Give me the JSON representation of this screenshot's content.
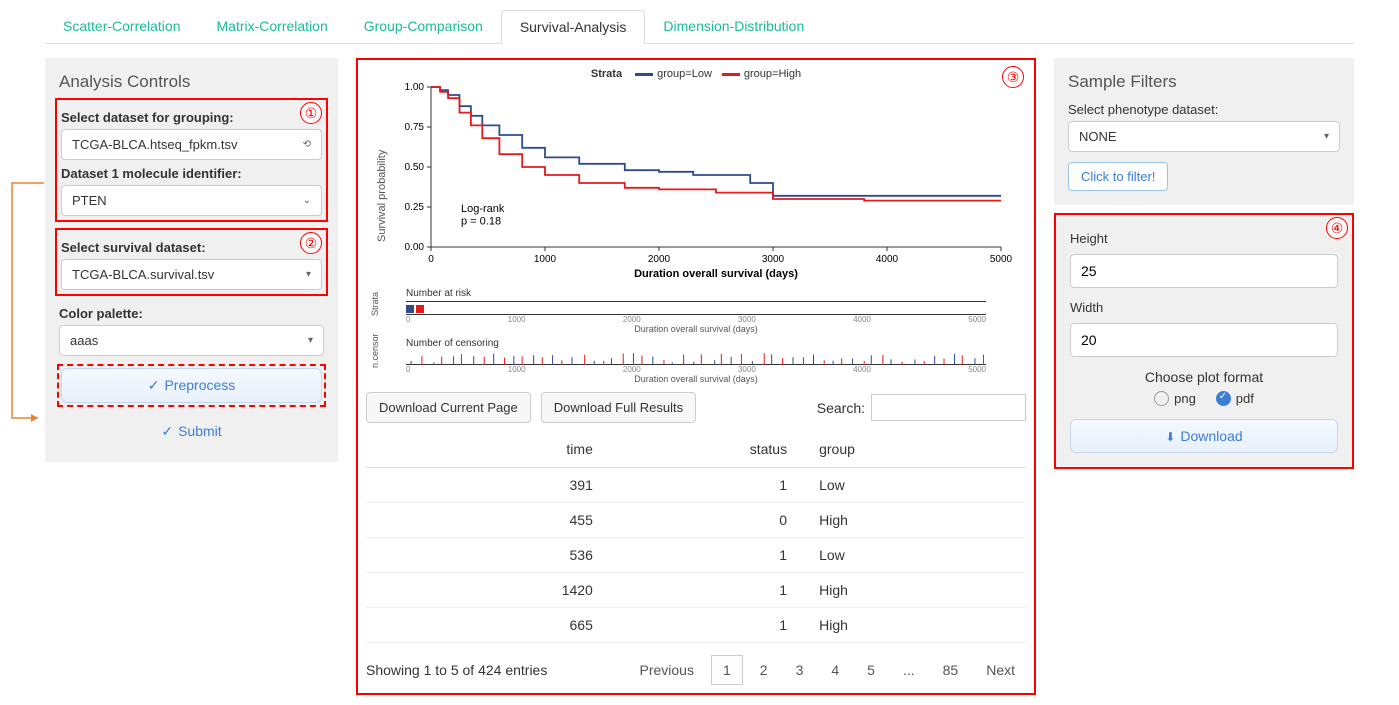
{
  "tabs": {
    "items": [
      "Scatter-Correlation",
      "Matrix-Correlation",
      "Group-Comparison",
      "Survival-Analysis",
      "Dimension-Distribution"
    ],
    "active_index": 3
  },
  "controls": {
    "title": "Analysis Controls",
    "dataset_label": "Select dataset for grouping:",
    "dataset_value": "TCGA-BLCA.htseq_fpkm.tsv",
    "molecule_label": "Dataset 1 molecule identifier:",
    "molecule_value": "PTEN",
    "survival_label": "Select survival dataset:",
    "survival_value": "TCGA-BLCA.survival.tsv",
    "palette_label": "Color palette:",
    "palette_value": "aaas",
    "preprocess_btn": "Preprocess",
    "submit_btn": "Submit"
  },
  "callouts": {
    "c1": "①",
    "c2": "②",
    "c3": "③",
    "c4": "④"
  },
  "chart": {
    "type": "kaplan-meier",
    "strata_label": "Strata",
    "legend": [
      {
        "label": "group=Low",
        "color": "#2e4b8f"
      },
      {
        "label": "group=High",
        "color": "#e41a1c"
      }
    ],
    "ylabel": "Survival probability",
    "xlabel": "Duration overall survival (days)",
    "xlim": [
      0,
      5000
    ],
    "ylim": [
      0,
      1.0
    ],
    "xtick_step": 1000,
    "ytick_step": 0.25,
    "yticks": [
      "0.00",
      "0.25",
      "0.50",
      "0.75",
      "1.00"
    ],
    "xticks": [
      "0",
      "1000",
      "2000",
      "3000",
      "4000",
      "5000"
    ],
    "annotation_lines": [
      "Log-rank",
      "p = 0.18"
    ],
    "background_color": "#ffffff",
    "axis_color": "#333333",
    "series": {
      "low": {
        "color": "#2e4b8f",
        "points": [
          [
            0,
            1.0
          ],
          [
            80,
            0.98
          ],
          [
            150,
            0.95
          ],
          [
            250,
            0.88
          ],
          [
            350,
            0.82
          ],
          [
            450,
            0.76
          ],
          [
            600,
            0.7
          ],
          [
            800,
            0.62
          ],
          [
            1000,
            0.56
          ],
          [
            1300,
            0.52
          ],
          [
            1700,
            0.48
          ],
          [
            2000,
            0.47
          ],
          [
            2300,
            0.45
          ],
          [
            2800,
            0.4
          ],
          [
            3000,
            0.32
          ],
          [
            3600,
            0.32
          ],
          [
            4400,
            0.32
          ],
          [
            5000,
            0.32
          ]
        ]
      },
      "high": {
        "color": "#e41a1c",
        "points": [
          [
            0,
            1.0
          ],
          [
            80,
            0.97
          ],
          [
            150,
            0.93
          ],
          [
            250,
            0.84
          ],
          [
            350,
            0.76
          ],
          [
            450,
            0.68
          ],
          [
            600,
            0.58
          ],
          [
            800,
            0.5
          ],
          [
            1000,
            0.45
          ],
          [
            1300,
            0.4
          ],
          [
            1700,
            0.37
          ],
          [
            2000,
            0.36
          ],
          [
            2500,
            0.34
          ],
          [
            3000,
            0.3
          ],
          [
            3800,
            0.29
          ],
          [
            4500,
            0.29
          ],
          [
            5000,
            0.29
          ]
        ]
      }
    },
    "risk_title": "Number at risk",
    "censor_title": "Number of censoring",
    "sub_xlabel": "Duration overall survival (days)",
    "strata_axis": "Strata",
    "censor_axis": "n.censor"
  },
  "table": {
    "download_page_btn": "Download Current Page",
    "download_full_btn": "Download Full Results",
    "search_label": "Search:",
    "columns": [
      "time",
      "status",
      "group"
    ],
    "rows": [
      {
        "time": "391",
        "status": "1",
        "group": "Low"
      },
      {
        "time": "455",
        "status": "0",
        "group": "High"
      },
      {
        "time": "536",
        "status": "1",
        "group": "Low"
      },
      {
        "time": "1420",
        "status": "1",
        "group": "High"
      },
      {
        "time": "665",
        "status": "1",
        "group": "High"
      }
    ],
    "info": "Showing 1 to 5 of 424 entries",
    "pager": {
      "prev": "Previous",
      "pages": [
        "1",
        "2",
        "3",
        "4",
        "5",
        "...",
        "85"
      ],
      "next": "Next",
      "current": "1"
    }
  },
  "filters": {
    "title": "Sample Filters",
    "phenotype_label": "Select phenotype dataset:",
    "phenotype_value": "NONE",
    "filter_btn": "Click to filter!",
    "height_label": "Height",
    "height_value": "25",
    "width_label": "Width",
    "width_value": "20",
    "format_label": "Choose plot format",
    "opt_png": "png",
    "opt_pdf": "pdf",
    "selected_format": "pdf",
    "download_btn": "Download"
  },
  "arrow_color": "#f08030"
}
